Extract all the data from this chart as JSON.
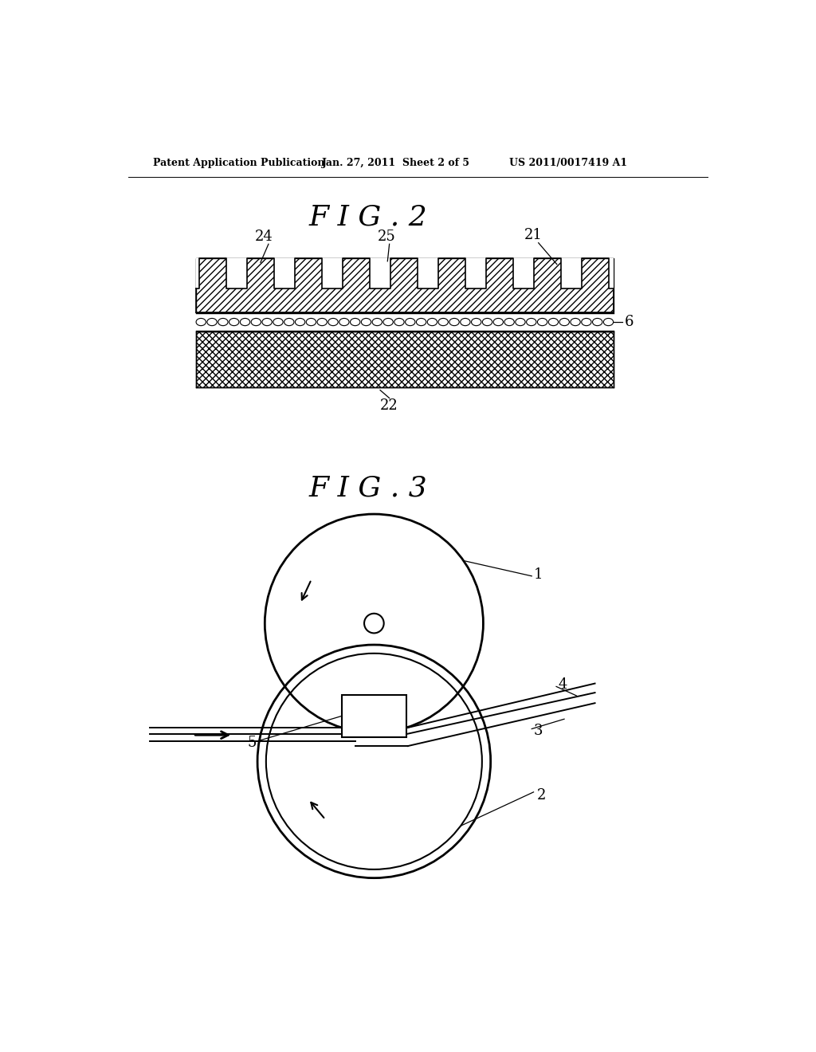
{
  "bg_color": "#ffffff",
  "header_left": "Patent Application Publication",
  "header_mid": "Jan. 27, 2011  Sheet 2 of 5",
  "header_right": "US 2011/0017419 A1",
  "fig2_title": "F I G . 2",
  "fig3_title": "F I G . 3",
  "label_24": "24",
  "label_25": "25",
  "label_21": "21",
  "label_6": "6",
  "label_22": "22",
  "label_1": "1",
  "label_2": "2",
  "label_3": "3",
  "label_4": "4",
  "label_5": "5"
}
